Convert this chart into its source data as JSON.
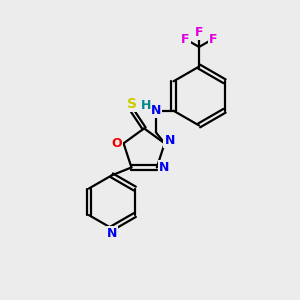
{
  "background_color": "#ececec",
  "bond_color": "#000000",
  "atom_colors": {
    "N": "#0000ee",
    "O": "#ee0000",
    "S": "#cccc00",
    "F": "#dd00dd",
    "H": "#008888",
    "C": "#000000"
  },
  "figsize": [
    3.0,
    3.0
  ],
  "dpi": 100
}
